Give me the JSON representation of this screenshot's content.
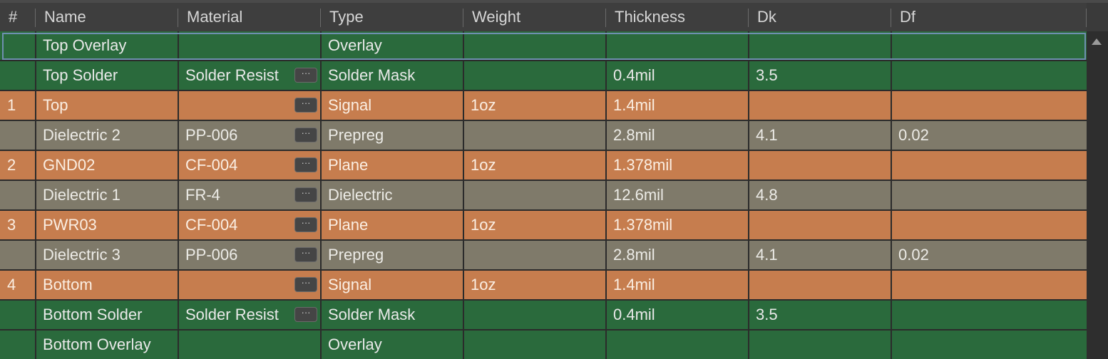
{
  "colors": {
    "overlay_solder": "#2a6a3c",
    "signal_plane": "#c67d4e",
    "dielectric": "#7f7a6a",
    "header_bg": "#3e3e3e",
    "header_text": "#d6d6d6",
    "cell_text_green": "#e9e9e9",
    "cell_text_orange": "#fbeee2",
    "cell_text_gray": "#ecebe6",
    "selection_border": "#6f8fb0"
  },
  "columns": [
    "#",
    "Name",
    "Material",
    "Type",
    "Weight",
    "Thickness",
    "Dk",
    "Df"
  ],
  "material_button_label": "···",
  "rows": [
    {
      "num": "",
      "name": "Top Overlay",
      "material": "",
      "has_mat_btn": false,
      "type": "Overlay",
      "weight": "",
      "thickness": "",
      "dk": "",
      "df": "",
      "kind": "green",
      "selected": true
    },
    {
      "num": "",
      "name": "Top Solder",
      "material": "Solder Resist",
      "has_mat_btn": true,
      "type": "Solder Mask",
      "weight": "",
      "thickness": "0.4mil",
      "dk": "3.5",
      "df": "",
      "kind": "green",
      "selected": false
    },
    {
      "num": "1",
      "name": "Top",
      "material": "",
      "has_mat_btn": true,
      "type": "Signal",
      "weight": "1oz",
      "thickness": "1.4mil",
      "dk": "",
      "df": "",
      "kind": "orange",
      "selected": false
    },
    {
      "num": "",
      "name": "Dielectric 2",
      "material": "PP-006",
      "has_mat_btn": true,
      "type": "Prepreg",
      "weight": "",
      "thickness": "2.8mil",
      "dk": "4.1",
      "df": "0.02",
      "kind": "gray",
      "selected": false
    },
    {
      "num": "2",
      "name": "GND02",
      "material": "CF-004",
      "has_mat_btn": true,
      "type": "Plane",
      "weight": "1oz",
      "thickness": "1.378mil",
      "dk": "",
      "df": "",
      "kind": "orange",
      "selected": false
    },
    {
      "num": "",
      "name": "Dielectric 1",
      "material": "FR-4",
      "has_mat_btn": true,
      "type": "Dielectric",
      "weight": "",
      "thickness": "12.6mil",
      "dk": "4.8",
      "df": "",
      "kind": "gray",
      "selected": false
    },
    {
      "num": "3",
      "name": "PWR03",
      "material": "CF-004",
      "has_mat_btn": true,
      "type": "Plane",
      "weight": "1oz",
      "thickness": "1.378mil",
      "dk": "",
      "df": "",
      "kind": "orange",
      "selected": false
    },
    {
      "num": "",
      "name": "Dielectric 3",
      "material": "PP-006",
      "has_mat_btn": true,
      "type": "Prepreg",
      "weight": "",
      "thickness": "2.8mil",
      "dk": "4.1",
      "df": "0.02",
      "kind": "gray",
      "selected": false
    },
    {
      "num": "4",
      "name": "Bottom",
      "material": "",
      "has_mat_btn": true,
      "type": "Signal",
      "weight": "1oz",
      "thickness": "1.4mil",
      "dk": "",
      "df": "",
      "kind": "orange",
      "selected": false
    },
    {
      "num": "",
      "name": "Bottom Solder",
      "material": "Solder Resist",
      "has_mat_btn": true,
      "type": "Solder Mask",
      "weight": "",
      "thickness": "0.4mil",
      "dk": "3.5",
      "df": "",
      "kind": "green",
      "selected": false
    },
    {
      "num": "",
      "name": "Bottom Overlay",
      "material": "",
      "has_mat_btn": false,
      "type": "Overlay",
      "weight": "",
      "thickness": "",
      "dk": "",
      "df": "",
      "kind": "green",
      "selected": false
    }
  ]
}
